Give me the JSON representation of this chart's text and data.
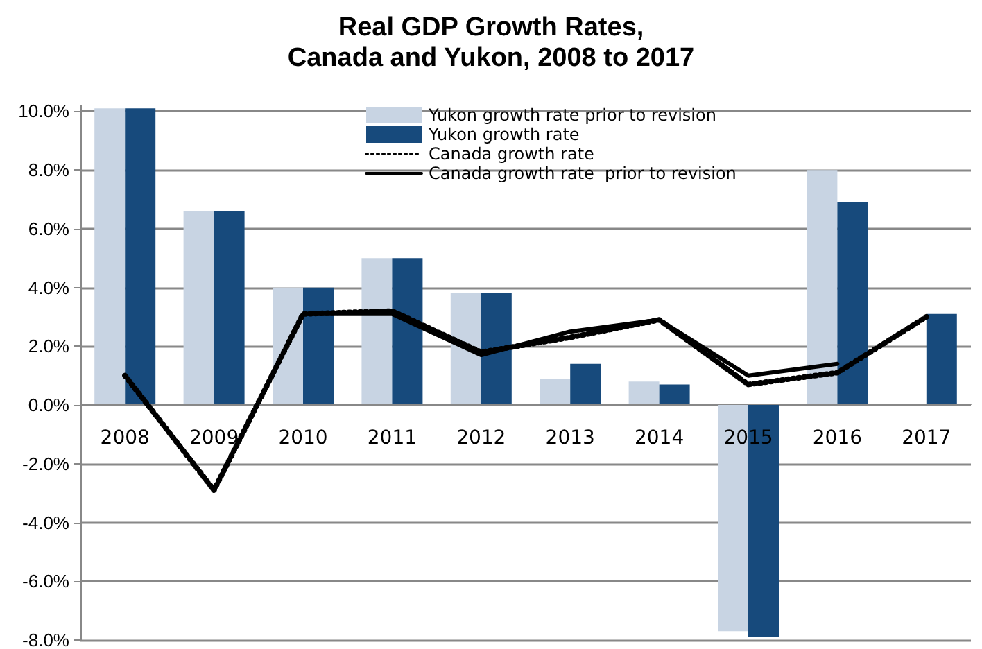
{
  "chart_data": {
    "type": "bar",
    "title": "Real GDP Growth Rates,\nCanada and Yukon, 2008 to 2017",
    "categories": [
      "2008",
      "2009",
      "2010",
      "2011",
      "2012",
      "2013",
      "2014",
      "2015",
      "2016",
      "2017"
    ],
    "series": [
      {
        "name": "Yukon growth rate prior to revision",
        "color": "#c8d4e3",
        "values": [
          10.1,
          6.6,
          4.0,
          5.0,
          3.8,
          0.9,
          0.8,
          -7.7,
          8.0,
          null
        ]
      },
      {
        "name": "Yukon growth rate",
        "color": "#174a7c",
        "values": [
          10.1,
          6.6,
          4.0,
          5.0,
          3.8,
          1.4,
          0.7,
          -7.9,
          6.9,
          3.1
        ]
      },
      {
        "name": "Canada growth rate",
        "type": "line",
        "line_style": "dotted",
        "color": "#000000",
        "values": [
          1.0,
          -2.9,
          3.1,
          3.2,
          1.8,
          2.3,
          2.9,
          0.7,
          1.1,
          3.0
        ]
      },
      {
        "name": "Canada growth rate  prior to revision",
        "type": "line",
        "line_style": "solid",
        "color": "#000000",
        "values": [
          1.0,
          -2.9,
          3.1,
          3.1,
          1.7,
          2.5,
          2.9,
          1.0,
          1.4,
          null
        ]
      }
    ],
    "ylim": [
      -8,
      10.2
    ],
    "yticks": [
      {
        "value": -8,
        "label": "-8.0%"
      },
      {
        "value": -6,
        "label": "-6.0%"
      },
      {
        "value": -4,
        "label": "-4.0%"
      },
      {
        "value": -2,
        "label": "-2.0%"
      },
      {
        "value": 0,
        "label": "0.0%"
      },
      {
        "value": 2,
        "label": "2.0%"
      },
      {
        "value": 4,
        "label": "4.0%"
      },
      {
        "value": 6,
        "label": "6.0%"
      },
      {
        "value": 8,
        "label": "8.0%"
      },
      {
        "value": 10,
        "label": "10.0%"
      }
    ],
    "grid": "y",
    "legend": "top",
    "marker": "none"
  }
}
